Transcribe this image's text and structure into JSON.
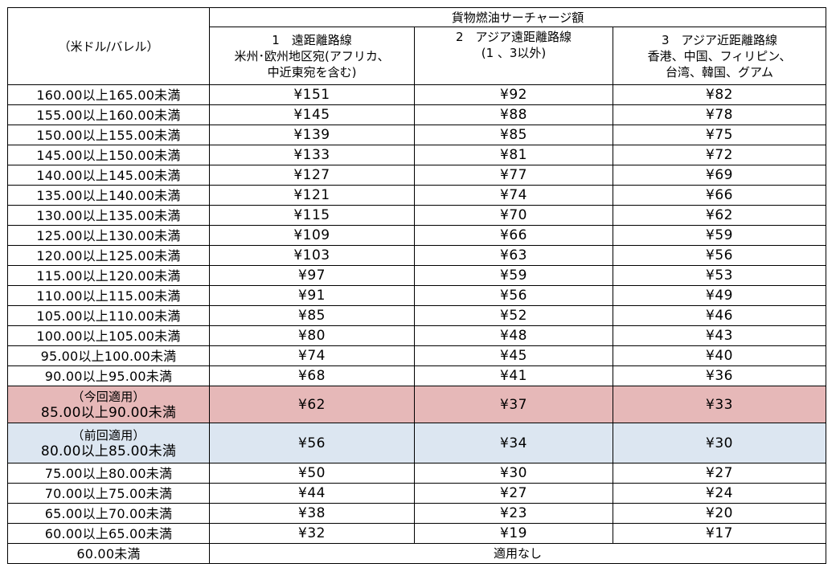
{
  "table": {
    "unit_label": "（米ドル/バレル）",
    "group_header": "貨物燃油サーチャージ額",
    "columns": [
      {
        "line1": "1　遠距離路線",
        "line2": "米州･欧州地区宛(アフリカ、",
        "line3": "中近東宛を含む)"
      },
      {
        "line1": "2　アジア遠距離路線",
        "line2": "(1 、3以外)",
        "line3": ""
      },
      {
        "line1": "3　アジア近距離路線",
        "line2": "香港、中国、フィリピン、",
        "line3": "台湾、韓国、グアム"
      }
    ],
    "rows": [
      {
        "range": "160.00以上165.00未満",
        "v1": "¥151",
        "v2": "¥92",
        "v3": "¥82"
      },
      {
        "range": "155.00以上160.00未満",
        "v1": "¥145",
        "v2": "¥88",
        "v3": "¥78"
      },
      {
        "range": "150.00以上155.00未満",
        "v1": "¥139",
        "v2": "¥85",
        "v3": "¥75"
      },
      {
        "range": "145.00以上150.00未満",
        "v1": "¥133",
        "v2": "¥81",
        "v3": "¥72"
      },
      {
        "range": "140.00以上145.00未満",
        "v1": "¥127",
        "v2": "¥77",
        "v3": "¥69"
      },
      {
        "range": "135.00以上140.00未満",
        "v1": "¥121",
        "v2": "¥74",
        "v3": "¥66"
      },
      {
        "range": "130.00以上135.00未満",
        "v1": "¥115",
        "v2": "¥70",
        "v3": "¥62"
      },
      {
        "range": "125.00以上130.00未満",
        "v1": "¥109",
        "v2": "¥66",
        "v3": "¥59"
      },
      {
        "range": "120.00以上125.00未満",
        "v1": "¥103",
        "v2": "¥63",
        "v3": "¥56"
      },
      {
        "range": "115.00以上120.00未満",
        "v1": "¥97",
        "v2": "¥59",
        "v3": "¥53"
      },
      {
        "range": "110.00以上115.00未満",
        "v1": "¥91",
        "v2": "¥56",
        "v3": "¥49"
      },
      {
        "range": "105.00以上110.00未満",
        "v1": "¥85",
        "v2": "¥52",
        "v3": "¥46"
      },
      {
        "range": "100.00以上105.00未満",
        "v1": "¥80",
        "v2": "¥48",
        "v3": "¥43"
      },
      {
        "range": "95.00以上100.00未満",
        "v1": "¥74",
        "v2": "¥45",
        "v3": "¥40"
      },
      {
        "range": "90.00以上95.00未満",
        "v1": "¥68",
        "v2": "¥41",
        "v3": "¥36"
      }
    ],
    "current": {
      "note": "（今回適用）",
      "range": "85.00以上90.00未満",
      "v1": "¥62",
      "v2": "¥37",
      "v3": "¥33",
      "color": "#e6b8b8"
    },
    "previous": {
      "note": "（前回適用）",
      "range": "80.00以上85.00未満",
      "v1": "¥56",
      "v2": "¥34",
      "v3": "¥30",
      "color": "#dce6f1"
    },
    "rows_after": [
      {
        "range": "75.00以上80.00未満",
        "v1": "¥50",
        "v2": "¥30",
        "v3": "¥27"
      },
      {
        "range": "70.00以上75.00未満",
        "v1": "¥44",
        "v2": "¥27",
        "v3": "¥24"
      },
      {
        "range": "65.00以上70.00未満",
        "v1": "¥38",
        "v2": "¥23",
        "v3": "¥20"
      },
      {
        "range": "60.00以上65.00未満",
        "v1": "¥32",
        "v2": "¥19",
        "v3": "¥17"
      }
    ],
    "last": {
      "range": "60.00未満",
      "value": "適用なし"
    }
  }
}
